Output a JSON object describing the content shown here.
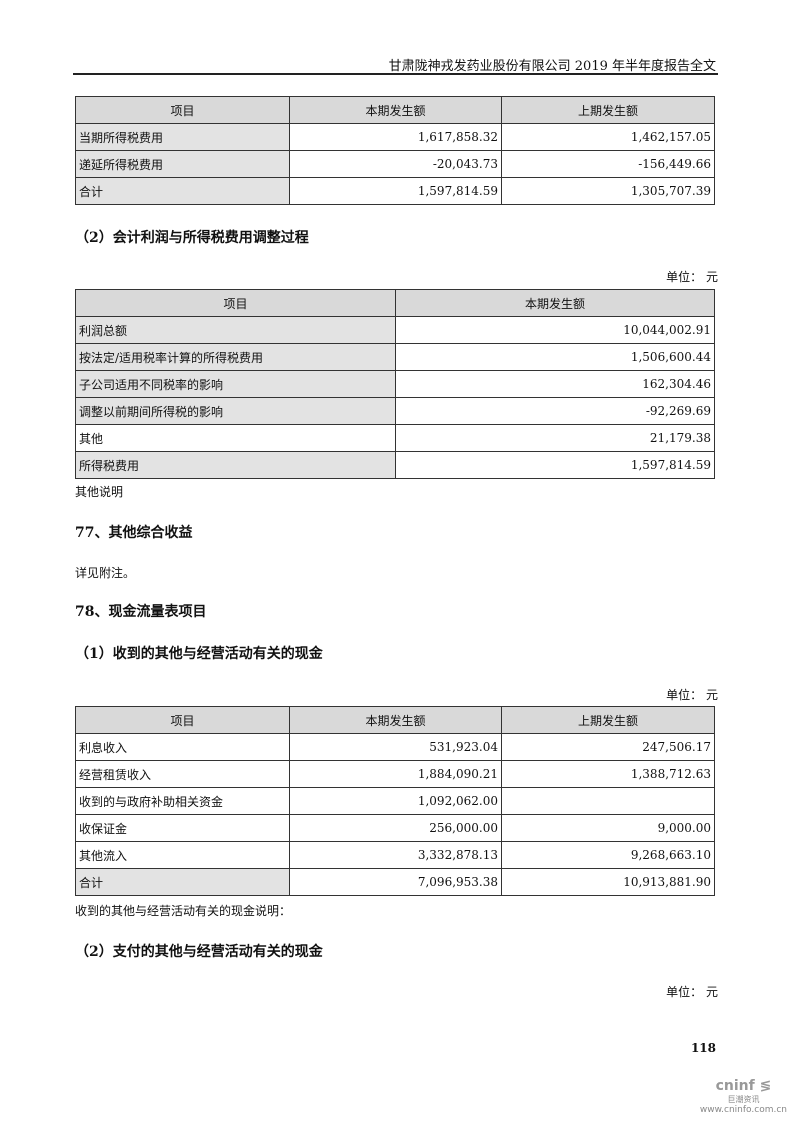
{
  "header": {
    "title": "甘肃陇神戎发药业股份有限公司 2019 年半年度报告全文"
  },
  "table1": {
    "headers": [
      "项目",
      "本期发生额",
      "上期发生额"
    ],
    "rows": [
      [
        "当期所得税费用",
        "1,617,858.32",
        "1,462,157.05"
      ],
      [
        "递延所得税费用",
        "-20,043.73",
        "-156,449.66"
      ],
      [
        "合计",
        "1,597,814.59",
        "1,305,707.39"
      ]
    ]
  },
  "section2": {
    "heading": "（2）会计利润与所得税费用调整过程",
    "unit": "单位： 元"
  },
  "table2": {
    "headers": [
      "项目",
      "本期发生额"
    ],
    "rows": [
      [
        "利润总额",
        "10,044,002.91"
      ],
      [
        "按法定/适用税率计算的所得税费用",
        "1,506,600.44"
      ],
      [
        "子公司适用不同税率的影响",
        "162,304.46"
      ],
      [
        "调整以前期间所得税的影响",
        "-92,269.69"
      ],
      [
        "其他",
        "21,179.38"
      ],
      [
        "所得税费用",
        "1,597,814.59"
      ]
    ]
  },
  "note2": "其他说明",
  "section77": {
    "heading": "77、其他综合收益",
    "text": "详见附注。"
  },
  "section78": {
    "heading": "78、现金流量表项目",
    "sub1": "（1）收到的其他与经营活动有关的现金",
    "unit1": "单位： 元",
    "sub2": "（2）支付的其他与经营活动有关的现金",
    "unit2": "单位： 元"
  },
  "table3": {
    "headers": [
      "项目",
      "本期发生额",
      "上期发生额"
    ],
    "rows": [
      [
        "利息收入",
        "531,923.04",
        "247,506.17"
      ],
      [
        "经营租赁收入",
        "1,884,090.21",
        "1,388,712.63"
      ],
      [
        "收到的与政府补助相关资金",
        "1,092,062.00",
        ""
      ],
      [
        "收保证金",
        "256,000.00",
        "9,000.00"
      ],
      [
        "其他流入",
        "3,332,878.13",
        "9,268,663.10"
      ],
      [
        "合计",
        "7,096,953.38",
        "10,913,881.90"
      ]
    ]
  },
  "note3": "收到的其他与经营活动有关的现金说明：",
  "page_number": "118",
  "logo": {
    "name": "cninf",
    "cn": "巨潮资讯",
    "url": "www.cninfo.com.cn"
  }
}
